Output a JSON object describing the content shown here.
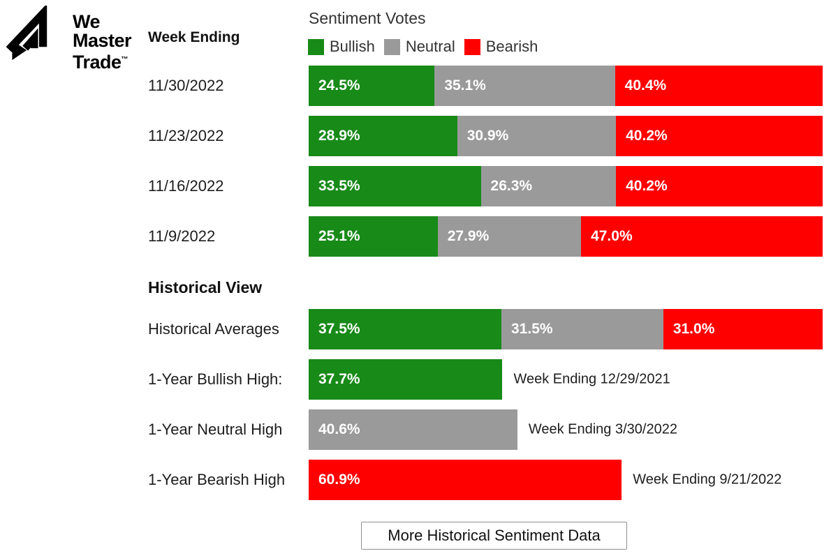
{
  "logo": {
    "line1": "We",
    "line2": "Master",
    "line3": "Trade",
    "tm": "™"
  },
  "header": {
    "week_ending_label": "Week Ending",
    "chart_title": "Sentiment Votes"
  },
  "legend": [
    {
      "label": "Bullish",
      "color": "#188a18"
    },
    {
      "label": "Neutral",
      "color": "#9a9a9a"
    },
    {
      "label": "Bearish",
      "color": "#fe0000"
    }
  ],
  "chart_data": {
    "type": "bar",
    "orientation": "horizontal-stacked",
    "title": "Sentiment Votes",
    "categories": [
      "11/30/2022",
      "11/23/2022",
      "11/16/2022",
      "11/9/2022"
    ],
    "series": [
      {
        "name": "Bullish",
        "color": "#188a18",
        "values": [
          24.5,
          28.9,
          33.5,
          25.1
        ]
      },
      {
        "name": "Neutral",
        "color": "#9a9a9a",
        "values": [
          35.1,
          30.9,
          26.3,
          27.9
        ]
      },
      {
        "name": "Bearish",
        "color": "#fe0000",
        "values": [
          40.4,
          40.2,
          40.2,
          47.0
        ]
      }
    ],
    "value_suffix": "%",
    "xlim": [
      0,
      100
    ],
    "legend_position": "top"
  },
  "historical": {
    "section_title": "Historical View",
    "averages": {
      "label": "Historical Averages",
      "values": [
        {
          "series": "Bullish",
          "value": 37.5
        },
        {
          "series": "Neutral",
          "value": 31.5
        },
        {
          "series": "Bearish",
          "value": 31.0
        }
      ]
    },
    "highs": [
      {
        "label": "1-Year Bullish High:",
        "series": "Bullish",
        "value": 37.7,
        "note": "Week Ending 12/29/2021"
      },
      {
        "label": "1-Year Neutral High",
        "series": "Neutral",
        "value": 40.6,
        "note": "Week Ending 3/30/2022"
      },
      {
        "label": "1-Year Bearish High",
        "series": "Bearish",
        "value": 60.9,
        "note": "Week Ending 9/21/2022"
      }
    ]
  },
  "footer": {
    "button_label": "More Historical Sentiment Data"
  }
}
